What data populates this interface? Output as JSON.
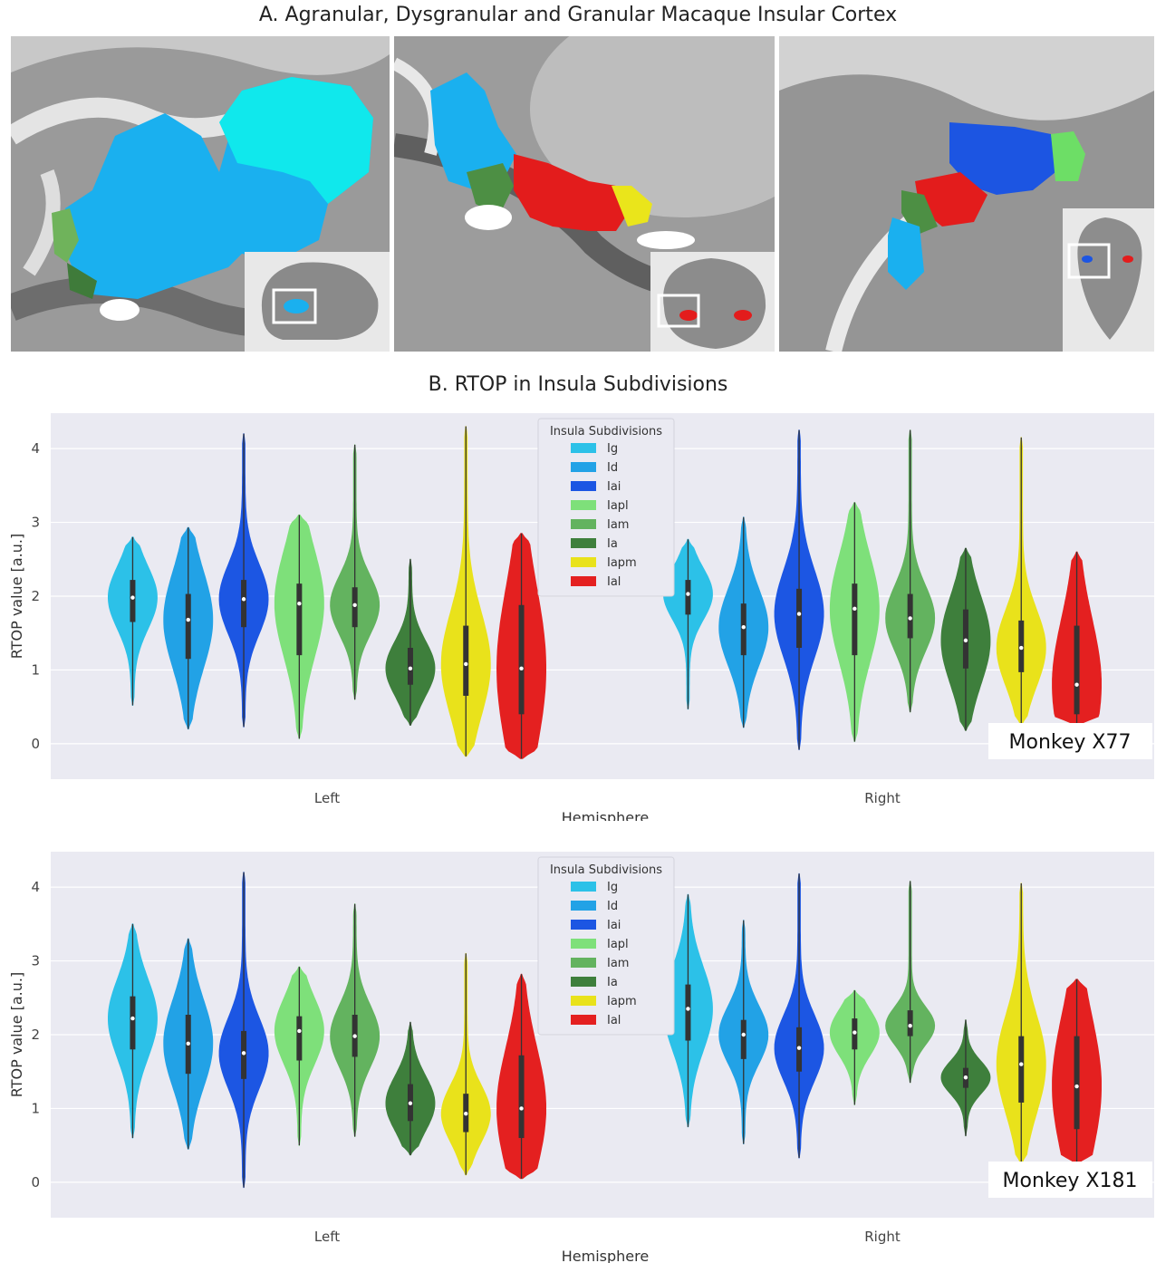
{
  "panel_a": {
    "title": "A. Agranular, Dysgranular and Granular Macaque Insular Cortex",
    "views": [
      "sagittal",
      "coronal",
      "axial"
    ]
  },
  "panel_b": {
    "title": "B. RTOP in Insula Subdivisions"
  },
  "colors": {
    "Ig": "#2cc1e8",
    "Id": "#22a2e6",
    "Iai": "#1c56e3",
    "Iapl": "#7ee07a",
    "Iam": "#63b35f",
    "Ia": "#3e7f3c",
    "Iapm": "#e9e21b",
    "Ial": "#e42020",
    "plot_bg": "#eaeaf2",
    "grid": "#ffffff"
  },
  "chart_data": [
    {
      "type": "violin",
      "annotation": "Monkey X77",
      "xlabel": "Hemisphere",
      "ylabel": "RTOP value [a.u.]",
      "ylim": [
        -0.48,
        4.48
      ],
      "yticks": [
        "0",
        "1",
        "2",
        "3",
        "4"
      ],
      "categories": [
        "Left",
        "Right"
      ],
      "legend": {
        "title": "Insula Subdivisions",
        "position": "top-center",
        "entries": [
          "Ig",
          "Id",
          "Iai",
          "Iapl",
          "Iam",
          "Ia",
          "Iapm",
          "Ial"
        ]
      },
      "grid": true,
      "series": [
        {
          "name": "Ig",
          "Left": {
            "min": 0.52,
            "max": 2.8,
            "q1": 1.65,
            "median": 1.98,
            "q3": 2.22
          },
          "Right": {
            "min": 0.47,
            "max": 2.77,
            "q1": 1.75,
            "median": 2.03,
            "q3": 2.22
          }
        },
        {
          "name": "Id",
          "Left": {
            "min": 0.2,
            "max": 2.93,
            "q1": 1.15,
            "median": 1.68,
            "q3": 2.03
          },
          "Right": {
            "min": 0.22,
            "max": 3.07,
            "q1": 1.2,
            "median": 1.58,
            "q3": 1.9
          }
        },
        {
          "name": "Iai",
          "Left": {
            "min": 0.23,
            "max": 4.2,
            "q1": 1.58,
            "median": 1.96,
            "q3": 2.22
          },
          "Right": {
            "min": -0.08,
            "max": 4.25,
            "q1": 1.3,
            "median": 1.76,
            "q3": 2.1
          }
        },
        {
          "name": "Iapl",
          "Left": {
            "min": 0.07,
            "max": 3.1,
            "q1": 1.2,
            "median": 1.9,
            "q3": 2.17
          },
          "Right": {
            "min": 0.03,
            "max": 3.27,
            "q1": 1.2,
            "median": 1.83,
            "q3": 2.17
          }
        },
        {
          "name": "Iam",
          "Left": {
            "min": 0.6,
            "max": 4.05,
            "q1": 1.58,
            "median": 1.88,
            "q3": 2.12
          },
          "Right": {
            "min": 0.43,
            "max": 4.25,
            "q1": 1.43,
            "median": 1.7,
            "q3": 2.03
          }
        },
        {
          "name": "Ia",
          "Left": {
            "min": 0.25,
            "max": 2.5,
            "q1": 0.8,
            "median": 1.02,
            "q3": 1.3
          },
          "Right": {
            "min": 0.18,
            "max": 2.65,
            "q1": 1.02,
            "median": 1.4,
            "q3": 1.82
          }
        },
        {
          "name": "Iapm",
          "Left": {
            "min": -0.17,
            "max": 4.3,
            "q1": 0.65,
            "median": 1.08,
            "q3": 1.6
          },
          "Right": {
            "min": 0.25,
            "max": 4.15,
            "q1": 0.97,
            "median": 1.3,
            "q3": 1.67
          }
        },
        {
          "name": "Ial",
          "Left": {
            "min": -0.2,
            "max": 2.85,
            "q1": 0.4,
            "median": 1.02,
            "q3": 1.88
          },
          "Right": {
            "min": 0.25,
            "max": 2.6,
            "q1": 0.4,
            "median": 0.8,
            "q3": 1.6
          }
        }
      ]
    },
    {
      "type": "violin",
      "annotation": "Monkey X181",
      "xlabel": "Hemisphere",
      "ylabel": "RTOP value [a.u.]",
      "ylim": [
        -0.48,
        4.48
      ],
      "yticks": [
        "0",
        "1",
        "2",
        "3",
        "4"
      ],
      "categories": [
        "Left",
        "Right"
      ],
      "legend": {
        "title": "Insula Subdivisions",
        "position": "top-center",
        "entries": [
          "Ig",
          "Id",
          "Iai",
          "Iapl",
          "Iam",
          "Ia",
          "Iapm",
          "Ial"
        ]
      },
      "grid": true,
      "series": [
        {
          "name": "Ig",
          "Left": {
            "min": 0.6,
            "max": 3.5,
            "q1": 1.8,
            "median": 2.22,
            "q3": 2.52
          },
          "Right": {
            "min": 0.75,
            "max": 3.9,
            "q1": 1.92,
            "median": 2.35,
            "q3": 2.68
          }
        },
        {
          "name": "Id",
          "Left": {
            "min": 0.45,
            "max": 3.3,
            "q1": 1.47,
            "median": 1.88,
            "q3": 2.27
          },
          "Right": {
            "min": 0.52,
            "max": 3.55,
            "q1": 1.67,
            "median": 2.0,
            "q3": 2.2
          }
        },
        {
          "name": "Iai",
          "Left": {
            "min": -0.07,
            "max": 4.2,
            "q1": 1.4,
            "median": 1.75,
            "q3": 2.05
          },
          "Right": {
            "min": 0.33,
            "max": 4.18,
            "q1": 1.5,
            "median": 1.82,
            "q3": 2.1
          }
        },
        {
          "name": "Iapl",
          "Left": {
            "min": 0.5,
            "max": 2.92,
            "q1": 1.65,
            "median": 2.05,
            "q3": 2.25
          },
          "Right": {
            "min": 1.05,
            "max": 2.6,
            "q1": 1.8,
            "median": 2.03,
            "q3": 2.22
          }
        },
        {
          "name": "Iam",
          "Left": {
            "min": 0.62,
            "max": 3.77,
            "q1": 1.7,
            "median": 1.98,
            "q3": 2.27
          },
          "Right": {
            "min": 1.35,
            "max": 4.08,
            "q1": 1.98,
            "median": 2.12,
            "q3": 2.33
          }
        },
        {
          "name": "Ia",
          "Left": {
            "min": 0.37,
            "max": 2.17,
            "q1": 0.83,
            "median": 1.07,
            "q3": 1.33
          },
          "Right": {
            "min": 0.63,
            "max": 2.2,
            "q1": 1.28,
            "median": 1.42,
            "q3": 1.55
          }
        },
        {
          "name": "Iapm",
          "Left": {
            "min": 0.1,
            "max": 3.1,
            "q1": 0.68,
            "median": 0.93,
            "q3": 1.2
          },
          "Right": {
            "min": 0.25,
            "max": 4.05,
            "q1": 1.08,
            "median": 1.6,
            "q3": 1.98
          }
        },
        {
          "name": "Ial",
          "Left": {
            "min": 0.05,
            "max": 2.82,
            "q1": 0.6,
            "median": 1.0,
            "q3": 1.72
          },
          "Right": {
            "min": 0.25,
            "max": 2.75,
            "q1": 0.72,
            "median": 1.3,
            "q3": 1.98
          }
        }
      ]
    }
  ]
}
